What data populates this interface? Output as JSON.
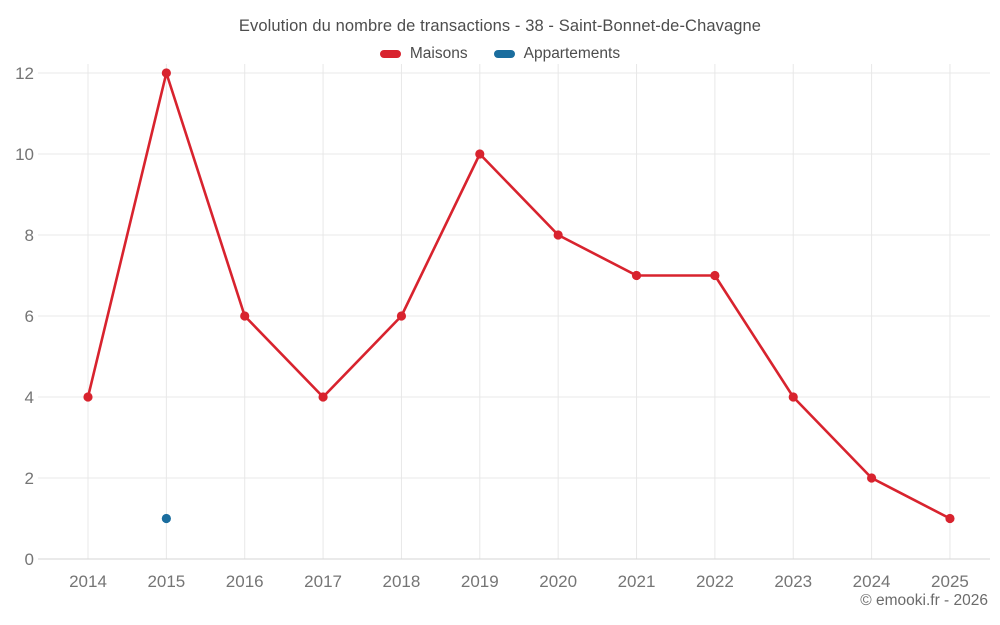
{
  "header": {
    "title": "Evolution du nombre de transactions - 38 - Saint-Bonnet-de-Chavagne"
  },
  "legend": [
    {
      "label": "Maisons",
      "color": "#d8232e"
    },
    {
      "label": "Appartements",
      "color": "#1a6d9e"
    }
  ],
  "footer": {
    "copyright": "© emooki.fr - 2026"
  },
  "colors": {
    "grid": "#e8e8e8",
    "axis_line": "#d6d6d6",
    "tick_label": "#757575",
    "title_text": "#4d4d4d"
  },
  "chart_data": {
    "type": "line",
    "title": "Evolution du nombre de transactions - 38 - Saint-Bonnet-de-Chavagne",
    "x": [
      2014,
      2015,
      2016,
      2017,
      2018,
      2019,
      2020,
      2021,
      2022,
      2023,
      2024,
      2025
    ],
    "series": [
      {
        "name": "Maisons",
        "color": "#d8232e",
        "values": [
          4,
          12,
          6,
          4,
          6,
          10,
          8,
          7,
          7,
          4,
          2,
          1
        ]
      },
      {
        "name": "Appartements",
        "color": "#1a6d9e",
        "values": [
          null,
          1,
          null,
          null,
          null,
          null,
          null,
          null,
          null,
          null,
          null,
          null
        ]
      }
    ],
    "xlabel": "",
    "ylabel": "",
    "ylim": [
      0,
      12
    ],
    "yticks": [
      0,
      2,
      4,
      6,
      8,
      10,
      12
    ],
    "grid": true,
    "legend_position": "top"
  }
}
